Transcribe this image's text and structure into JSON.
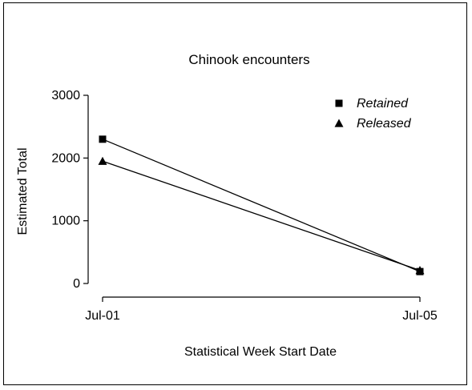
{
  "chart_data": {
    "type": "line",
    "title": "Chinook encounters",
    "xlabel": "Statistical Week Start Date",
    "ylabel": "Estimated Total",
    "categories": [
      "Jul-01",
      "Jul-05"
    ],
    "ylim": [
      0,
      3000
    ],
    "yticks": [
      0,
      1000,
      2000,
      3000
    ],
    "grid": false,
    "legend_position": "top-right",
    "series": [
      {
        "name": "Retained",
        "marker": "square",
        "values": [
          2300,
          190
        ]
      },
      {
        "name": "Released",
        "marker": "triangle",
        "values": [
          1950,
          210
        ]
      }
    ]
  }
}
